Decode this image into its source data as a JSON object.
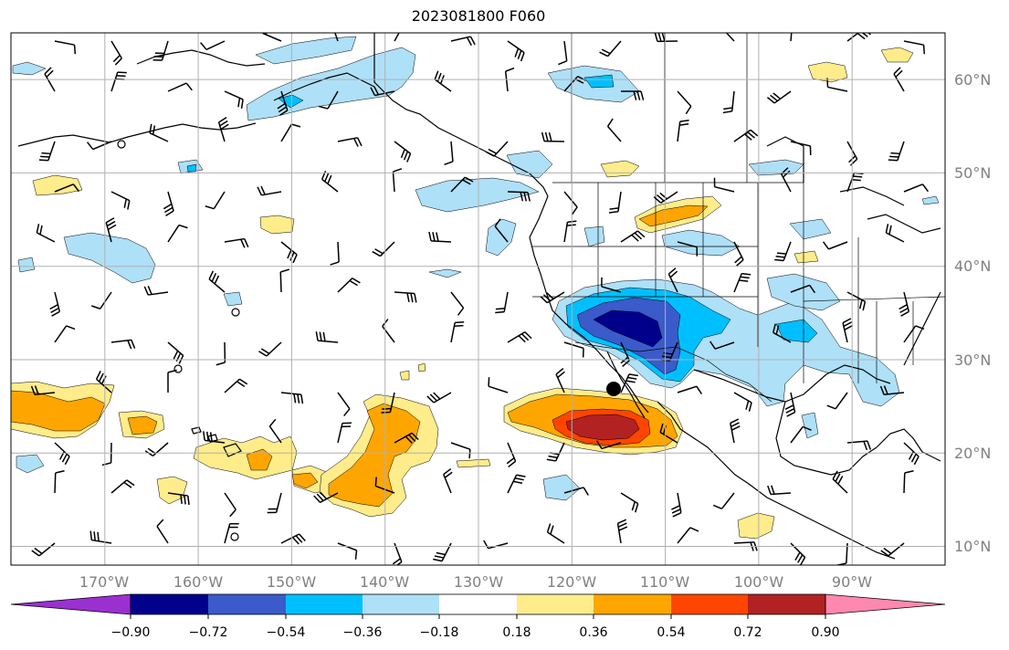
{
  "title": "2023081800 F060",
  "map": {
    "lat_labels": [
      "60°N",
      "50°N",
      "40°N",
      "30°N",
      "20°N",
      "10°N"
    ],
    "lon_labels": [
      "170°W",
      "160°W",
      "150°W",
      "140°W",
      "130°W",
      "120°W",
      "110°W",
      "100°W",
      "90°W"
    ],
    "lat_range": [
      8,
      66
    ],
    "lon_range": [
      -180,
      -80
    ],
    "grid": true,
    "marker": {
      "lon": -116,
      "lat": 26.6,
      "color": "#000000"
    }
  },
  "colorbar": {
    "ticks": [
      "−0.90",
      "−0.72",
      "−0.54",
      "−0.36",
      "−0.18",
      "0.18",
      "0.36",
      "0.54",
      "0.72",
      "0.90"
    ],
    "bins": [
      {
        "color": "#9b30d0"
      },
      {
        "color": "#00008b"
      },
      {
        "color": "#3a5bc9"
      },
      {
        "color": "#00bfff"
      },
      {
        "color": "#aee0f8"
      },
      {
        "color": "#ffffff"
      },
      {
        "color": "#ffec8b"
      },
      {
        "color": "#ffa500"
      },
      {
        "color": "#ff4500"
      },
      {
        "color": "#b22222"
      },
      {
        "color": "#ff88b0"
      }
    ]
  },
  "fields": {
    "negative_colors": [
      "#aee0f8",
      "#00bfff",
      "#3a5bc9",
      "#00008b"
    ],
    "positive_colors": [
      "#ffec8b",
      "#ffa500",
      "#ff4500",
      "#b22222"
    ]
  }
}
